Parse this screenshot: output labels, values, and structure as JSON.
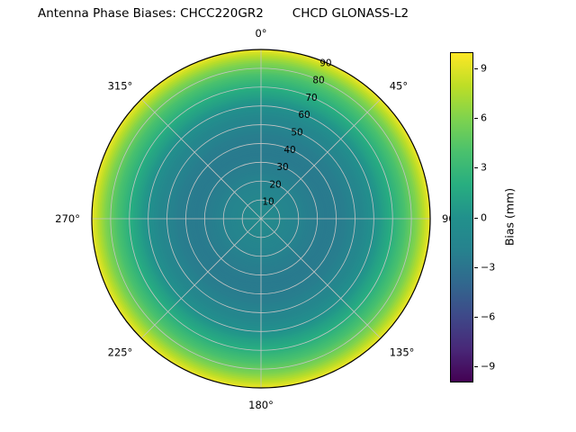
{
  "title": {
    "left": "Antenna Phase Biases: CHCC220GR2",
    "right": "CHCD GLONASS-L2"
  },
  "polar": {
    "azimuth_labels": [
      {
        "label": "0°",
        "angle": 0
      },
      {
        "label": "45°",
        "angle": 45
      },
      {
        "label": "90",
        "angle": 90
      },
      {
        "label": "135°",
        "angle": 135
      },
      {
        "label": "180°",
        "angle": 180
      },
      {
        "label": "225°",
        "angle": 225
      },
      {
        "label": "270°",
        "angle": 270
      },
      {
        "label": "315°",
        "angle": 315
      }
    ],
    "radial_ticks": [
      "10",
      "20",
      "30",
      "40",
      "50",
      "60",
      "70",
      "80",
      "90"
    ],
    "radial_label_angle": 22.5,
    "grid_color": "#c4c4c4",
    "edge_color": "#000000"
  },
  "colorbar": {
    "label": "Bias (mm)",
    "ticks": [
      "9",
      "6",
      "3",
      "0",
      "−3",
      "−6",
      "−9"
    ],
    "tick_values": [
      9,
      6,
      3,
      0,
      -3,
      -6,
      -9
    ],
    "range": [
      -10,
      10
    ]
  },
  "chart_data": {
    "type": "heatmap",
    "projection": "polar",
    "title": "Antenna Phase Biases: CHCC220GR2   CHCD GLONASS-L2",
    "colormap": "viridis",
    "colorbar_label": "Bias (mm)",
    "colorbar_ticks": [
      9,
      6,
      3,
      0,
      -3,
      -6,
      -9
    ],
    "value_range": [
      -10,
      10
    ],
    "azimuth_ticks_deg": [
      0,
      45,
      90,
      135,
      180,
      225,
      270,
      315
    ],
    "zenith_ticks_deg": [
      10,
      20,
      30,
      40,
      50,
      60,
      70,
      80,
      90
    ],
    "radial_profile": {
      "zenith_deg": [
        0,
        5,
        15,
        25,
        35,
        45,
        55,
        62,
        70,
        77,
        83,
        87,
        90
      ],
      "bias_mm": [
        -0.8,
        -1.0,
        -1.6,
        -2.2,
        -2.6,
        -2.3,
        -1.2,
        0.2,
        2.0,
        4.0,
        6.0,
        7.8,
        9.3
      ]
    },
    "viridis_stops": [
      "#440154",
      "#482878",
      "#3e4989",
      "#31688e",
      "#26828e",
      "#21918c",
      "#28ae80",
      "#4ac16d",
      "#7ed34e",
      "#bdde26",
      "#fde725"
    ]
  }
}
